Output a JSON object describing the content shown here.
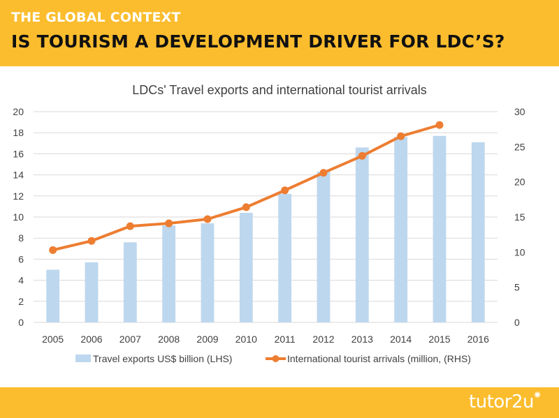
{
  "header": {
    "kicker": "THE GLOBAL CONTEXT",
    "title": "IS TOURISM A DEVELOPMENT DRIVER FOR LDC’S?"
  },
  "footer": {
    "brand": "tutor2u",
    "brand_icon": "sun-logo-icon"
  },
  "colors": {
    "banner": "#fbbd2e",
    "bar": "#bdd7ee",
    "line": "#ed7d31"
  },
  "chart_data": {
    "type": "bar",
    "title": "LDCs' Travel exports and international tourist arrivals",
    "categories": [
      "2005",
      "2006",
      "2007",
      "2008",
      "2009",
      "2010",
      "2011",
      "2012",
      "2013",
      "2014",
      "2015",
      "2016"
    ],
    "series": [
      {
        "name": "Travel exports US$ billion (LHS)",
        "type": "bar",
        "axis": "left",
        "values": [
          5.0,
          5.7,
          7.6,
          9.2,
          9.4,
          10.4,
          12.2,
          14.3,
          16.6,
          17.6,
          17.7,
          17.1
        ]
      },
      {
        "name": "International tourist arrivals (million, (RHS)",
        "type": "line",
        "axis": "right",
        "values": [
          10.3,
          11.6,
          13.7,
          14.1,
          14.7,
          16.4,
          18.8,
          21.3,
          23.7,
          26.5,
          28.1,
          null
        ]
      }
    ],
    "y_left": {
      "min": 0,
      "max": 20,
      "ticks": [
        0,
        2,
        4,
        6,
        8,
        10,
        12,
        14,
        16,
        18,
        20
      ]
    },
    "y_right": {
      "min": 0,
      "max": 30,
      "ticks": [
        0,
        5,
        10,
        15,
        20,
        25,
        30
      ]
    },
    "grid": true,
    "legend_position": "bottom"
  }
}
